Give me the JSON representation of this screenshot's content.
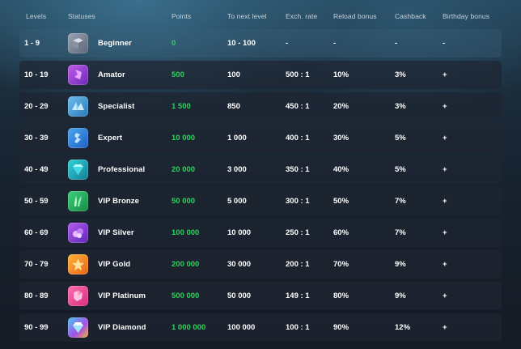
{
  "columns": {
    "levels": "Levels",
    "statuses": "Statuses",
    "points": "Points",
    "to_next_level": "To next level",
    "exch_rate": "Exch. rate",
    "reload_bonus": "Reload bonus",
    "cashback": "Cashback",
    "birthday_bonus": "Birthday bonus"
  },
  "rows": [
    {
      "levels": "1 - 9",
      "status": "Beginner",
      "icon": "beginner-badge-icon",
      "points": "0",
      "to_next": "10 - 100",
      "exch": "-",
      "reload": "-",
      "cashback": "-",
      "birthday": "-"
    },
    {
      "levels": "10 - 19",
      "status": "Amator",
      "icon": "amator-badge-icon",
      "points": "500",
      "to_next": "100",
      "exch": "500 : 1",
      "reload": "10%",
      "cashback": "3%",
      "birthday": "+"
    },
    {
      "levels": "20 - 29",
      "status": "Specialist",
      "icon": "specialist-badge-icon",
      "points": "1 500",
      "to_next": "850",
      "exch": "450 : 1",
      "reload": "20%",
      "cashback": "3%",
      "birthday": "+"
    },
    {
      "levels": "30 - 39",
      "status": "Expert",
      "icon": "expert-badge-icon",
      "points": "10 000",
      "to_next": "1 000",
      "exch": "400 : 1",
      "reload": "30%",
      "cashback": "5%",
      "birthday": "+"
    },
    {
      "levels": "40 - 49",
      "status": "Professional",
      "icon": "professional-badge-icon",
      "points": "20 000",
      "to_next": "3 000",
      "exch": "350 : 1",
      "reload": "40%",
      "cashback": "5%",
      "birthday": "+"
    },
    {
      "levels": "50 - 59",
      "status": "VIP Bronze",
      "icon": "vip-bronze-badge-icon",
      "points": "50 000",
      "to_next": "5 000",
      "exch": "300 : 1",
      "reload": "50%",
      "cashback": "7%",
      "birthday": "+"
    },
    {
      "levels": "60 - 69",
      "status": "VIP Silver",
      "icon": "vip-silver-badge-icon",
      "points": "100 000",
      "to_next": "10 000",
      "exch": "250 : 1",
      "reload": "60%",
      "cashback": "7%",
      "birthday": "+"
    },
    {
      "levels": "70 - 79",
      "status": "VIP Gold",
      "icon": "vip-gold-badge-icon",
      "points": "200 000",
      "to_next": "30 000",
      "exch": "200 : 1",
      "reload": "70%",
      "cashback": "9%",
      "birthday": "+"
    },
    {
      "levels": "80 - 89",
      "status": "VIP Platinum",
      "icon": "vip-platinum-badge-icon",
      "points": "500 000",
      "to_next": "50 000",
      "exch": "149 : 1",
      "reload": "80%",
      "cashback": "9%",
      "birthday": "+"
    },
    {
      "levels": "90 - 99",
      "status": "VIP Diamond",
      "icon": "vip-diamond-badge-icon",
      "points": "1 000 000",
      "to_next": "100 000",
      "exch": "100 : 1",
      "reload": "90%",
      "cashback": "12%",
      "birthday": "+"
    }
  ],
  "colors": {
    "points_green": "#2fd25e",
    "header_text": "#c7d2dc",
    "row_background": "#1e2632"
  }
}
